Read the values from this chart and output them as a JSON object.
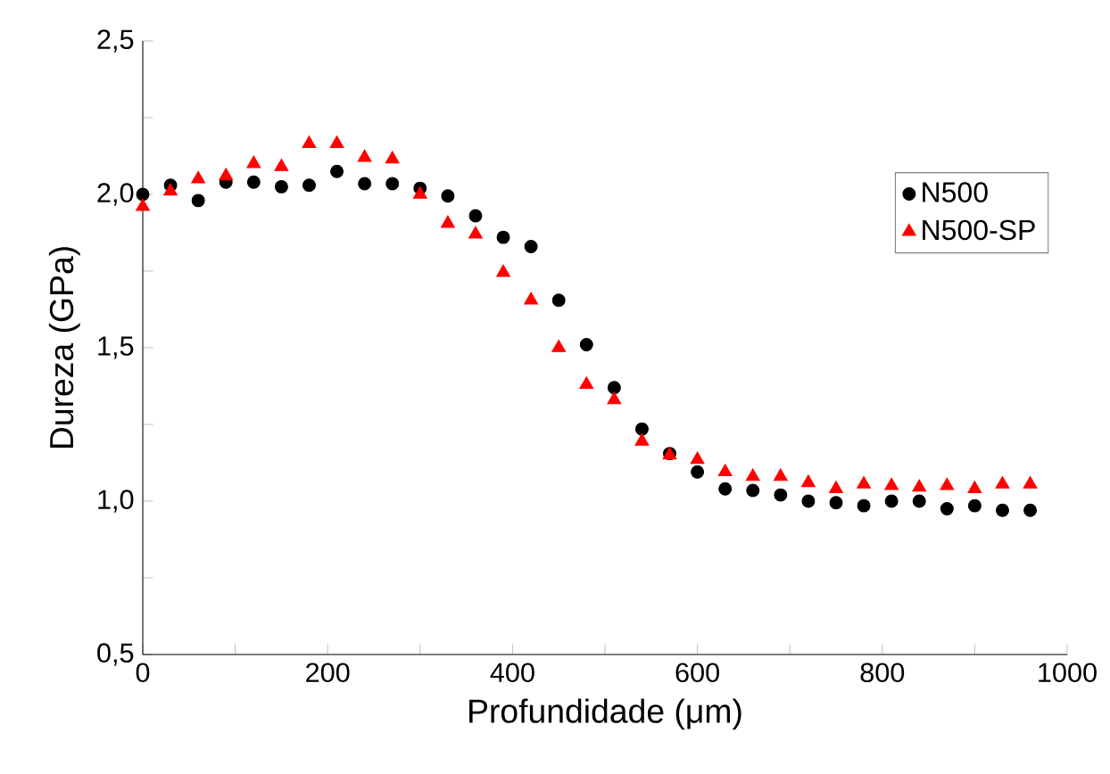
{
  "chart_data": {
    "type": "scatter",
    "xlabel": "Profundidade (μm)",
    "ylabel": "Dureza (GPa)",
    "x": [
      0,
      30,
      60,
      90,
      120,
      150,
      180,
      210,
      240,
      270,
      300,
      330,
      360,
      390,
      420,
      450,
      480,
      510,
      540,
      570,
      600,
      630,
      660,
      690,
      720,
      750,
      780,
      810,
      840,
      870,
      900,
      930,
      960
    ],
    "series": [
      {
        "name": "N500",
        "color": "#000000",
        "marker": "circle",
        "values": [
          2.0,
          2.03,
          1.98,
          2.04,
          2.04,
          2.025,
          2.03,
          2.075,
          2.035,
          2.035,
          2.02,
          1.995,
          1.93,
          1.86,
          1.83,
          1.655,
          1.51,
          1.37,
          1.235,
          1.155,
          1.095,
          1.04,
          1.035,
          1.02,
          1.0,
          0.995,
          0.985,
          1.0,
          1.0,
          0.975,
          0.985,
          0.97,
          0.97
        ]
      },
      {
        "name": "N500-SP",
        "color": "#ff0000",
        "marker": "triangle",
        "values": [
          1.96,
          2.01,
          2.05,
          2.06,
          2.1,
          2.09,
          2.165,
          2.165,
          2.12,
          2.115,
          2.0,
          1.905,
          1.87,
          1.745,
          1.655,
          1.5,
          1.38,
          1.33,
          1.195,
          1.15,
          1.135,
          1.095,
          1.08,
          1.08,
          1.06,
          1.04,
          1.055,
          1.05,
          1.045,
          1.05,
          1.04,
          1.055,
          1.055
        ]
      }
    ],
    "xlim": [
      0,
      1000
    ],
    "ylim": [
      0.5,
      2.5
    ],
    "xticks": [
      0,
      {
        "value": 100,
        "label": null
      },
      200,
      {
        "value": 300,
        "label": null
      },
      400,
      {
        "value": 500,
        "label": null
      },
      600,
      {
        "value": 700,
        "label": null
      },
      800,
      {
        "value": 900,
        "label": null
      },
      1000
    ],
    "yticks": [
      {
        "value": 0.5,
        "label": "0,5"
      },
      {
        "value": 0.75,
        "label": null
      },
      {
        "value": 1.0,
        "label": "1,0"
      },
      {
        "value": 1.25,
        "label": null
      },
      {
        "value": 1.5,
        "label": "1,5"
      },
      {
        "value": 1.75,
        "label": null
      },
      {
        "value": 2.0,
        "label": "2,0"
      },
      {
        "value": 2.25,
        "label": null
      },
      {
        "value": 2.5,
        "label": "2,5"
      }
    ],
    "grid": false,
    "legend": "right"
  }
}
